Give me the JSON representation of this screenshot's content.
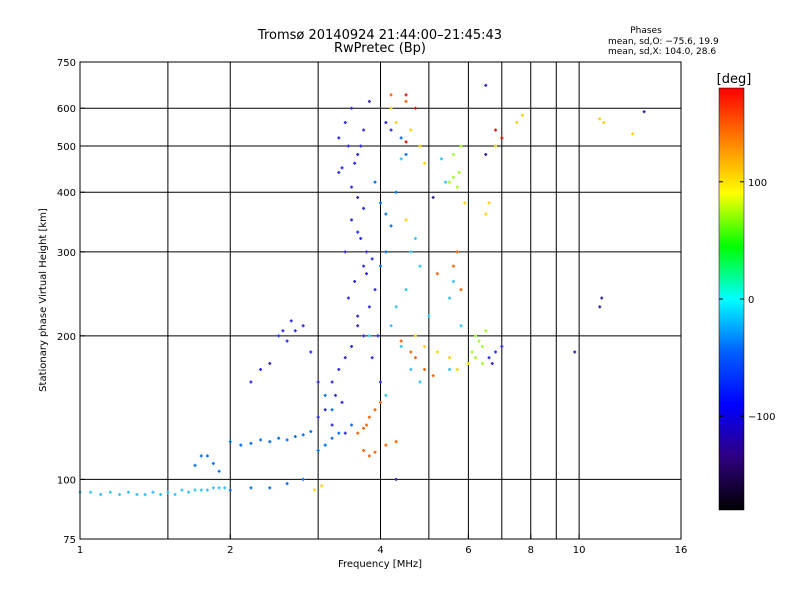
{
  "chart_data": {
    "type": "scatter",
    "title": "Tromsø 20140924 21:44:00–21:45:43",
    "subtitle": "RwPretec (Bp)",
    "xlabel": "Frequency [MHz]",
    "ylabel": "Stationary phase Virtual Height [km]",
    "x_scale": "log",
    "y_scale": "log",
    "xlim": [
      1,
      16
    ],
    "ylim": [
      75,
      750
    ],
    "x_ticks": [
      1,
      2,
      4,
      6,
      8,
      10,
      16
    ],
    "x_tick_labels": [
      "1",
      "2",
      "4",
      "6",
      "8",
      "10",
      "16"
    ],
    "x_grid": [
      1.5,
      2,
      3,
      4,
      5,
      6,
      7,
      8,
      9,
      10
    ],
    "y_ticks": [
      75,
      100,
      200,
      300,
      400,
      500,
      600,
      750
    ],
    "y_tick_labels": [
      "75",
      "100",
      "200",
      "300",
      "400",
      "500",
      "600",
      "750"
    ],
    "y_grid": [
      100,
      200,
      300,
      400,
      500,
      600
    ],
    "grid": true,
    "legend_position": "top-right",
    "phases": {
      "title": "Phases",
      "line_o": "mean, sd,O: −75.6, 19.9",
      "line_x": "mean, sd,X: 104.0, 28.6"
    },
    "colorbar": {
      "label": "[deg]",
      "range": [
        -180,
        180
      ],
      "ticks": [
        100,
        0,
        -100
      ],
      "tick_labels": [
        "100",
        "0",
        "−100"
      ],
      "colors": [
        "#ff0000",
        "#ff8000",
        "#ffff00",
        "#00ff00",
        "#00ffff",
        "#0060ff",
        "#0000ff",
        "#300080",
        "#000000"
      ]
    },
    "series": [
      {
        "phase_deg": -100,
        "color": "#2a2aff",
        "points": [
          [
            3.3,
            520
          ],
          [
            3.4,
            560
          ],
          [
            3.5,
            600
          ],
          [
            3.6,
            480
          ],
          [
            3.45,
            500
          ],
          [
            3.55,
            460
          ],
          [
            3.7,
            540
          ],
          [
            3.8,
            620
          ],
          [
            3.35,
            450
          ],
          [
            3.65,
            500
          ],
          [
            3.5,
            350
          ],
          [
            3.6,
            330
          ],
          [
            3.4,
            300
          ],
          [
            3.7,
            280
          ],
          [
            3.55,
            260
          ],
          [
            3.45,
            240
          ],
          [
            3.6,
            220
          ],
          [
            3.7,
            200
          ],
          [
            3.5,
            190
          ],
          [
            3.4,
            180
          ],
          [
            3.3,
            170
          ],
          [
            3.2,
            160
          ],
          [
            3.25,
            150
          ],
          [
            3.35,
            145
          ],
          [
            3.1,
            140
          ],
          [
            3.0,
            135
          ],
          [
            3.2,
            130
          ],
          [
            3.4,
            125
          ],
          [
            3.6,
            210
          ],
          [
            3.8,
            230
          ],
          [
            3.9,
            250
          ],
          [
            3.75,
            270
          ],
          [
            3.65,
            320
          ],
          [
            3.85,
            180
          ],
          [
            3.95,
            200
          ],
          [
            4.0,
            160
          ],
          [
            2.5,
            200
          ],
          [
            2.6,
            195
          ],
          [
            2.7,
            205
          ],
          [
            2.8,
            210
          ],
          [
            2.3,
            170
          ],
          [
            2.2,
            160
          ],
          [
            2.4,
            175
          ],
          [
            2.9,
            185
          ],
          [
            2.65,
            215
          ],
          [
            2.55,
            205
          ],
          [
            6.6,
            180
          ],
          [
            6.8,
            185
          ],
          [
            7.0,
            190
          ],
          [
            6.7,
            175
          ],
          [
            3.3,
            440
          ],
          [
            3.5,
            410
          ],
          [
            3.6,
            390
          ],
          [
            3.7,
            370
          ],
          [
            3.75,
            300
          ],
          [
            3.85,
            290
          ],
          [
            4.1,
            560
          ],
          [
            4.2,
            540
          ],
          [
            6.5,
            670
          ],
          [
            3.0,
            160
          ]
        ]
      },
      {
        "phase_deg": -85,
        "color": "#0070ff",
        "points": [
          [
            2.0,
            120
          ],
          [
            2.1,
            118
          ],
          [
            2.2,
            119
          ],
          [
            2.3,
            121
          ],
          [
            2.4,
            120
          ],
          [
            2.5,
            122
          ],
          [
            2.6,
            121
          ],
          [
            2.7,
            123
          ],
          [
            2.8,
            124
          ],
          [
            2.9,
            126
          ],
          [
            1.8,
            112
          ],
          [
            1.85,
            108
          ],
          [
            1.9,
            104
          ],
          [
            1.75,
            112
          ],
          [
            1.7,
            107
          ],
          [
            2.4,
            96
          ],
          [
            2.6,
            98
          ],
          [
            2.8,
            100
          ],
          [
            2.0,
            95
          ],
          [
            2.2,
            96
          ],
          [
            3.0,
            115
          ],
          [
            3.1,
            118
          ],
          [
            3.2,
            122
          ],
          [
            3.3,
            125
          ],
          [
            3.5,
            130
          ],
          [
            3.1,
            150
          ],
          [
            3.2,
            140
          ],
          [
            4.1,
            360
          ],
          [
            4.2,
            340
          ],
          [
            4.3,
            400
          ],
          [
            4.4,
            520
          ],
          [
            4.5,
            480
          ],
          [
            3.9,
            420
          ],
          [
            4.0,
            380
          ],
          [
            4.1,
            300
          ],
          [
            4.0,
            280
          ]
        ]
      },
      {
        "phase_deg": -60,
        "color": "#30c0ff",
        "points": [
          [
            1.0,
            94
          ],
          [
            1.05,
            94
          ],
          [
            1.1,
            93
          ],
          [
            1.15,
            94
          ],
          [
            1.2,
            93
          ],
          [
            1.25,
            94
          ],
          [
            1.3,
            93
          ],
          [
            1.35,
            93
          ],
          [
            1.4,
            94
          ],
          [
            1.45,
            93
          ],
          [
            1.5,
            94
          ],
          [
            1.55,
            93
          ],
          [
            1.6,
            95
          ],
          [
            1.65,
            94
          ],
          [
            1.7,
            95
          ],
          [
            1.75,
            95
          ],
          [
            1.8,
            95
          ],
          [
            1.85,
            96
          ],
          [
            1.9,
            96
          ],
          [
            1.95,
            96
          ],
          [
            4.6,
            300
          ],
          [
            4.7,
            320
          ],
          [
            4.8,
            280
          ],
          [
            4.5,
            250
          ],
          [
            5.0,
            220
          ],
          [
            5.5,
            240
          ],
          [
            5.6,
            260
          ],
          [
            5.8,
            210
          ],
          [
            3.8,
            200
          ],
          [
            4.2,
            210
          ],
          [
            4.4,
            190
          ],
          [
            4.6,
            170
          ],
          [
            4.8,
            160
          ],
          [
            5.5,
            170
          ],
          [
            4.1,
            150
          ],
          [
            4.3,
            230
          ],
          [
            5.4,
            420
          ],
          [
            5.3,
            470
          ],
          [
            4.4,
            470
          ]
        ]
      },
      {
        "phase_deg": 50,
        "color": "#a0ff20",
        "points": [
          [
            5.5,
            420
          ],
          [
            5.6,
            430
          ],
          [
            5.7,
            410
          ],
          [
            5.75,
            440
          ],
          [
            6.2,
            200
          ],
          [
            6.3,
            195
          ],
          [
            6.4,
            190
          ],
          [
            6.1,
            185
          ],
          [
            6.5,
            205
          ],
          [
            6.2,
            180
          ],
          [
            6.4,
            175
          ],
          [
            5.6,
            480
          ],
          [
            5.8,
            500
          ]
        ]
      },
      {
        "phase_deg": 110,
        "color": "#ffd000",
        "points": [
          [
            4.6,
            540
          ],
          [
            4.8,
            500
          ],
          [
            4.9,
            460
          ],
          [
            4.7,
            200
          ],
          [
            4.9,
            190
          ],
          [
            5.2,
            185
          ],
          [
            5.5,
            180
          ],
          [
            5.7,
            170
          ],
          [
            6.0,
            175
          ],
          [
            6.5,
            360
          ],
          [
            6.6,
            380
          ],
          [
            6.8,
            500
          ],
          [
            7.5,
            560
          ],
          [
            7.7,
            580
          ],
          [
            2.95,
            95
          ],
          [
            3.05,
            97
          ],
          [
            4.5,
            350
          ],
          [
            4.3,
            560
          ],
          [
            4.2,
            600
          ],
          [
            11.0,
            570
          ],
          [
            11.2,
            560
          ],
          [
            12.8,
            530
          ],
          [
            5.9,
            380
          ]
        ]
      },
      {
        "phase_deg": 150,
        "color": "#ff6000",
        "points": [
          [
            3.6,
            125
          ],
          [
            3.7,
            128
          ],
          [
            3.75,
            130
          ],
          [
            3.8,
            135
          ],
          [
            3.9,
            140
          ],
          [
            4.0,
            145
          ],
          [
            3.7,
            115
          ],
          [
            3.8,
            112
          ],
          [
            3.9,
            114
          ],
          [
            4.4,
            195
          ],
          [
            4.6,
            185
          ],
          [
            4.7,
            180
          ],
          [
            4.9,
            170
          ],
          [
            5.1,
            165
          ],
          [
            5.6,
            280
          ],
          [
            5.7,
            300
          ],
          [
            5.8,
            250
          ],
          [
            4.3,
            120
          ],
          [
            4.1,
            118
          ],
          [
            4.2,
            640
          ],
          [
            4.5,
            620
          ],
          [
            5.2,
            270
          ]
        ]
      },
      {
        "phase_deg": 175,
        "color": "#e81010",
        "points": [
          [
            4.5,
            640
          ],
          [
            4.7,
            600
          ],
          [
            6.8,
            540
          ],
          [
            7.0,
            520
          ],
          [
            4.5,
            510
          ]
        ]
      },
      {
        "phase_deg": -150,
        "color": "#3a1a9a",
        "points": [
          [
            9.8,
            185
          ],
          [
            11.0,
            230
          ],
          [
            11.1,
            240
          ],
          [
            13.5,
            590
          ],
          [
            6.5,
            480
          ],
          [
            4.3,
            100
          ],
          [
            5.1,
            390
          ]
        ]
      }
    ]
  }
}
